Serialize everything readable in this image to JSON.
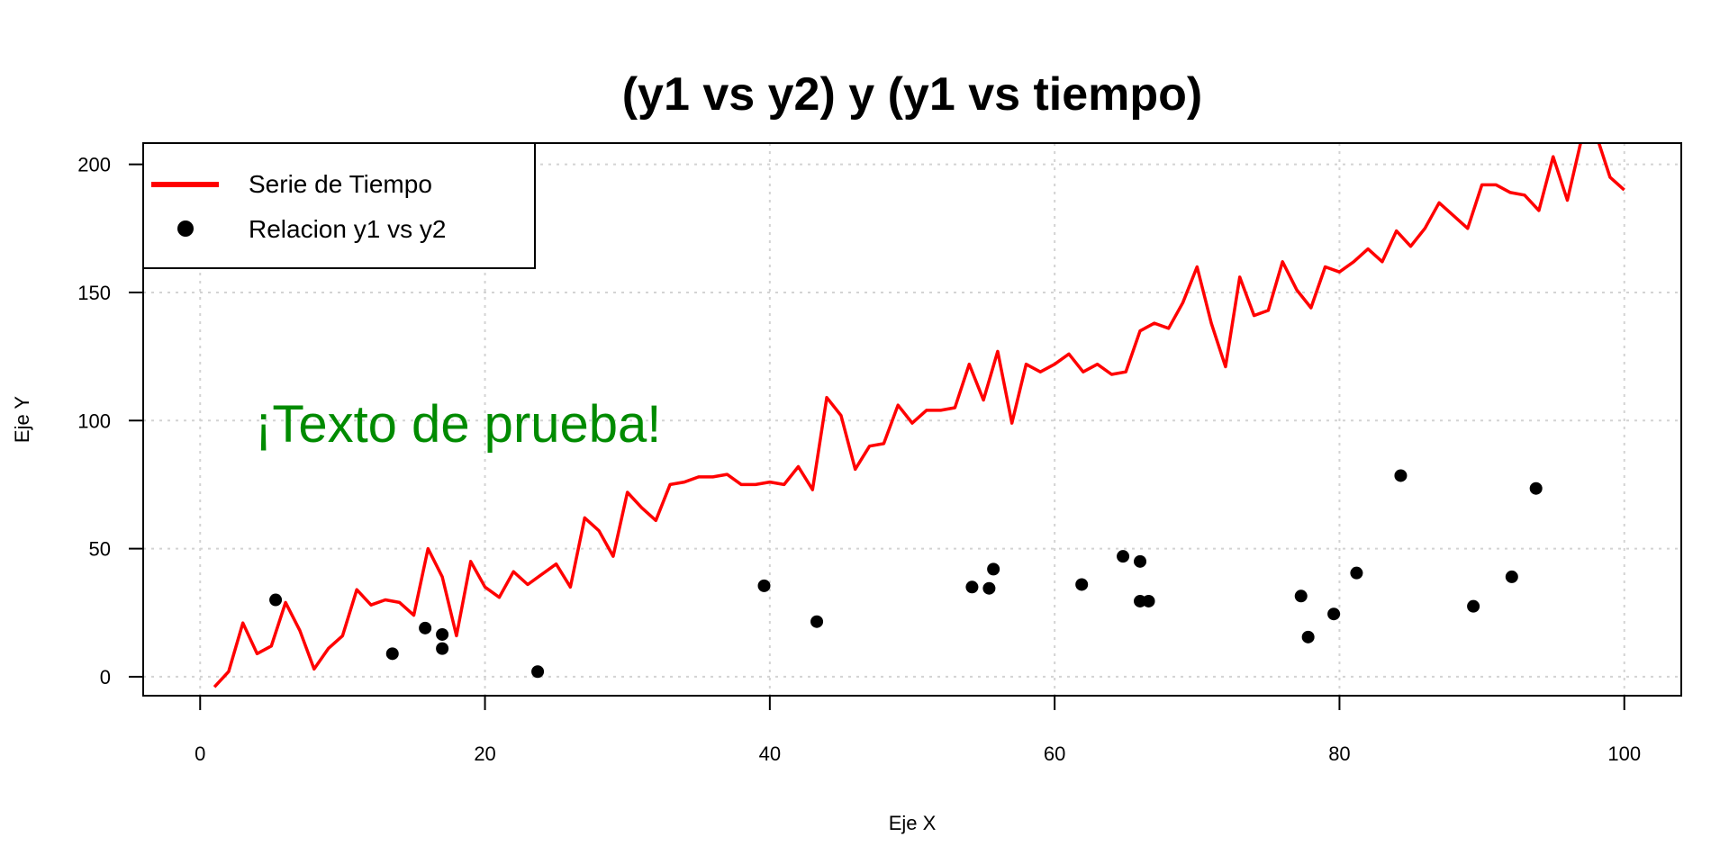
{
  "chart_data": {
    "type": "line+scatter",
    "title": "(y1 vs y2) y (y1 vs tiempo)",
    "xlabel": "Eje X",
    "ylabel": "Eje Y",
    "xlim": [
      -4,
      104
    ],
    "ylim": [
      -7.4,
      208.3
    ],
    "grid": true,
    "xticks": [
      0,
      20,
      40,
      60,
      80,
      100
    ],
    "yticks": [
      0,
      50,
      100,
      150,
      200
    ],
    "annotation": {
      "text": "¡Texto de prueba!",
      "color": "#008B00",
      "x": 4,
      "y": 100
    },
    "legend": {
      "placement": "top-left",
      "entries": [
        {
          "label": "Serie de Tiempo",
          "type": "line",
          "color": "#FF0000"
        },
        {
          "label": "Relacion y1 vs y2",
          "type": "point",
          "color": "#000000"
        }
      ]
    },
    "series": [
      {
        "name": "Serie de Tiempo",
        "type": "line",
        "color": "#FF0000",
        "x": [
          1,
          2,
          3,
          4,
          5,
          6,
          7,
          8,
          9,
          10,
          11,
          12,
          13,
          14,
          15,
          16,
          17,
          18,
          19,
          20,
          21,
          22,
          23,
          24,
          25,
          26,
          27,
          28,
          29,
          30,
          31,
          32,
          33,
          34,
          35,
          36,
          37,
          38,
          39,
          40,
          41,
          42,
          43,
          44,
          45,
          46,
          47,
          48,
          49,
          50,
          51,
          52,
          53,
          54,
          55,
          56,
          57,
          58,
          59,
          60,
          61,
          62,
          63,
          64,
          65,
          66,
          67,
          68,
          69,
          70,
          71,
          72,
          73,
          74,
          75,
          76,
          77,
          78,
          79,
          80,
          81,
          82,
          83,
          84,
          85,
          86,
          87,
          88,
          89,
          90,
          91,
          92,
          93,
          94,
          95,
          96,
          97,
          98,
          99,
          100
        ],
        "y": [
          -4,
          2,
          21,
          9,
          12,
          29,
          18,
          3,
          11,
          16,
          34,
          28,
          30,
          29,
          24,
          50,
          39,
          16,
          45,
          35,
          31,
          41,
          36,
          40,
          44,
          35,
          62,
          57,
          47,
          72,
          66,
          61,
          75,
          76,
          78,
          78,
          79,
          75,
          75,
          76,
          75,
          82,
          73,
          109,
          102,
          81,
          90,
          91,
          106,
          99,
          104,
          104,
          105,
          122,
          108,
          127,
          99,
          122,
          119,
          122,
          126,
          119,
          122,
          118,
          119,
          135,
          138,
          136,
          146,
          160,
          138,
          121,
          156,
          141,
          143,
          162,
          151,
          144,
          160,
          158,
          162,
          167,
          162,
          174,
          168,
          175,
          185,
          180,
          175,
          192,
          192,
          189,
          188,
          182,
          203,
          186,
          210,
          212,
          195,
          190
        ]
      },
      {
        "name": "Relacion y1 vs y2",
        "type": "scatter",
        "color": "#000000",
        "x": [
          5.3,
          13.5,
          15.8,
          17,
          17,
          23.7,
          39.6,
          43.3,
          54.2,
          55.4,
          55.7,
          61.9,
          64.8,
          66,
          66,
          66.6,
          77.3,
          77.8,
          79.6,
          81.2,
          84.3,
          89.4,
          92.1,
          93.8
        ],
        "y": [
          30,
          9,
          19,
          16.5,
          11,
          2,
          35.5,
          21.5,
          35,
          34.5,
          42,
          36,
          47,
          45,
          29.5,
          29.5,
          31.5,
          15.5,
          24.5,
          40.5,
          78.5,
          27.5,
          39,
          73.5
        ]
      }
    ]
  }
}
